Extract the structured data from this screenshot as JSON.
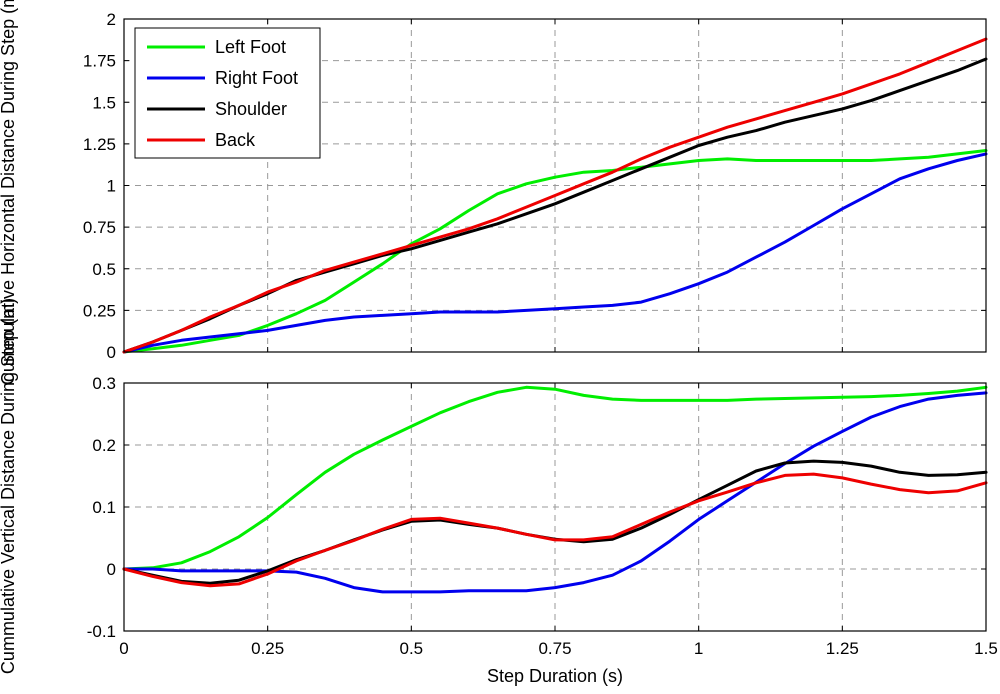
{
  "chart_data": [
    {
      "type": "line",
      "ylabel": "Cummulative Horizontal Distance During Step (m)",
      "xlabel": "",
      "xlim": [
        0,
        1.5
      ],
      "ylim": [
        0,
        2
      ],
      "xticks": [
        "0",
        "0.25",
        "0.5",
        "0.75",
        "1",
        "1.25",
        "1.5"
      ],
      "yticks": [
        "0",
        "0.25",
        "0.5",
        "0.75",
        "1",
        "1.25",
        "1.5",
        "1.75",
        "2"
      ],
      "grid": true,
      "legend": "top-left",
      "x": [
        0,
        0.05,
        0.1,
        0.15,
        0.2,
        0.25,
        0.3,
        0.35,
        0.4,
        0.45,
        0.5,
        0.55,
        0.6,
        0.65,
        0.7,
        0.75,
        0.8,
        0.85,
        0.9,
        0.95,
        1.0,
        1.05,
        1.1,
        1.15,
        1.2,
        1.25,
        1.3,
        1.35,
        1.4,
        1.45,
        1.5
      ],
      "series": [
        {
          "name": "Left Foot",
          "color": "#00ee00",
          "values": [
            0,
            0.02,
            0.04,
            0.07,
            0.1,
            0.16,
            0.23,
            0.31,
            0.42,
            0.53,
            0.65,
            0.74,
            0.85,
            0.95,
            1.01,
            1.05,
            1.08,
            1.09,
            1.11,
            1.13,
            1.15,
            1.16,
            1.15,
            1.15,
            1.15,
            1.15,
            1.15,
            1.16,
            1.17,
            1.19,
            1.21
          ]
        },
        {
          "name": "Right Foot",
          "color": "#0000ee",
          "values": [
            0,
            0.04,
            0.07,
            0.09,
            0.11,
            0.13,
            0.16,
            0.19,
            0.21,
            0.22,
            0.23,
            0.24,
            0.24,
            0.24,
            0.25,
            0.26,
            0.27,
            0.28,
            0.3,
            0.35,
            0.41,
            0.48,
            0.57,
            0.66,
            0.76,
            0.86,
            0.95,
            1.04,
            1.1,
            1.15,
            1.19
          ]
        },
        {
          "name": "Shoulder",
          "color": "#000000",
          "values": [
            0,
            0.06,
            0.13,
            0.2,
            0.28,
            0.35,
            0.43,
            0.48,
            0.53,
            0.58,
            0.62,
            0.67,
            0.72,
            0.77,
            0.83,
            0.89,
            0.96,
            1.03,
            1.1,
            1.17,
            1.24,
            1.29,
            1.33,
            1.38,
            1.42,
            1.46,
            1.51,
            1.57,
            1.63,
            1.69,
            1.76
          ]
        },
        {
          "name": "Back",
          "color": "#ee0000",
          "values": [
            0,
            0.06,
            0.13,
            0.21,
            0.28,
            0.36,
            0.42,
            0.49,
            0.54,
            0.59,
            0.64,
            0.69,
            0.74,
            0.8,
            0.87,
            0.94,
            1.01,
            1.08,
            1.16,
            1.23,
            1.29,
            1.35,
            1.4,
            1.45,
            1.5,
            1.55,
            1.61,
            1.67,
            1.74,
            1.81,
            1.88
          ]
        }
      ]
    },
    {
      "type": "line",
      "ylabel": "Cummulative Vertical Distance During Step (m)",
      "xlabel": "Step Duration (s)",
      "xlim": [
        0,
        1.5
      ],
      "ylim": [
        -0.1,
        0.3
      ],
      "xticks": [
        "0",
        "0.25",
        "0.5",
        "0.75",
        "1",
        "1.25",
        "1.5"
      ],
      "yticks": [
        "-0.1",
        "0",
        "0.1",
        "0.2",
        "0.3"
      ],
      "grid": true,
      "x": [
        0,
        0.05,
        0.1,
        0.15,
        0.2,
        0.25,
        0.3,
        0.35,
        0.4,
        0.45,
        0.5,
        0.55,
        0.6,
        0.65,
        0.7,
        0.75,
        0.8,
        0.85,
        0.9,
        0.95,
        1.0,
        1.05,
        1.1,
        1.15,
        1.2,
        1.25,
        1.3,
        1.35,
        1.4,
        1.45,
        1.5
      ],
      "series": [
        {
          "name": "Left Foot",
          "color": "#00ee00",
          "values": [
            0,
            0.002,
            0.01,
            0.028,
            0.052,
            0.083,
            0.12,
            0.156,
            0.185,
            0.208,
            0.23,
            0.252,
            0.27,
            0.285,
            0.293,
            0.29,
            0.28,
            0.274,
            0.272,
            0.272,
            0.272,
            0.272,
            0.274,
            0.275,
            0.276,
            0.277,
            0.278,
            0.28,
            0.283,
            0.287,
            0.293
          ]
        },
        {
          "name": "Right Foot",
          "color": "#0000ee",
          "values": [
            0,
            0,
            -0.003,
            -0.003,
            -0.003,
            -0.003,
            -0.005,
            -0.015,
            -0.03,
            -0.037,
            -0.037,
            -0.037,
            -0.035,
            -0.035,
            -0.035,
            -0.03,
            -0.022,
            -0.01,
            0.013,
            0.045,
            0.08,
            0.11,
            0.14,
            0.17,
            0.198,
            0.222,
            0.245,
            0.262,
            0.274,
            0.28,
            0.284
          ]
        },
        {
          "name": "Shoulder",
          "color": "#000000",
          "values": [
            0,
            -0.01,
            -0.02,
            -0.023,
            -0.018,
            -0.003,
            0.015,
            0.03,
            0.047,
            0.063,
            0.077,
            0.079,
            0.072,
            0.066,
            0.056,
            0.048,
            0.044,
            0.048,
            0.066,
            0.088,
            0.112,
            0.135,
            0.158,
            0.171,
            0.174,
            0.172,
            0.166,
            0.156,
            0.151,
            0.152,
            0.156
          ]
        },
        {
          "name": "Back",
          "color": "#ee0000",
          "values": [
            0,
            -0.012,
            -0.022,
            -0.027,
            -0.024,
            -0.008,
            0.013,
            0.03,
            0.046,
            0.064,
            0.08,
            0.082,
            0.074,
            0.066,
            0.056,
            0.047,
            0.047,
            0.052,
            0.072,
            0.092,
            0.11,
            0.124,
            0.139,
            0.151,
            0.153,
            0.147,
            0.137,
            0.128,
            0.123,
            0.126,
            0.139
          ]
        }
      ]
    }
  ]
}
